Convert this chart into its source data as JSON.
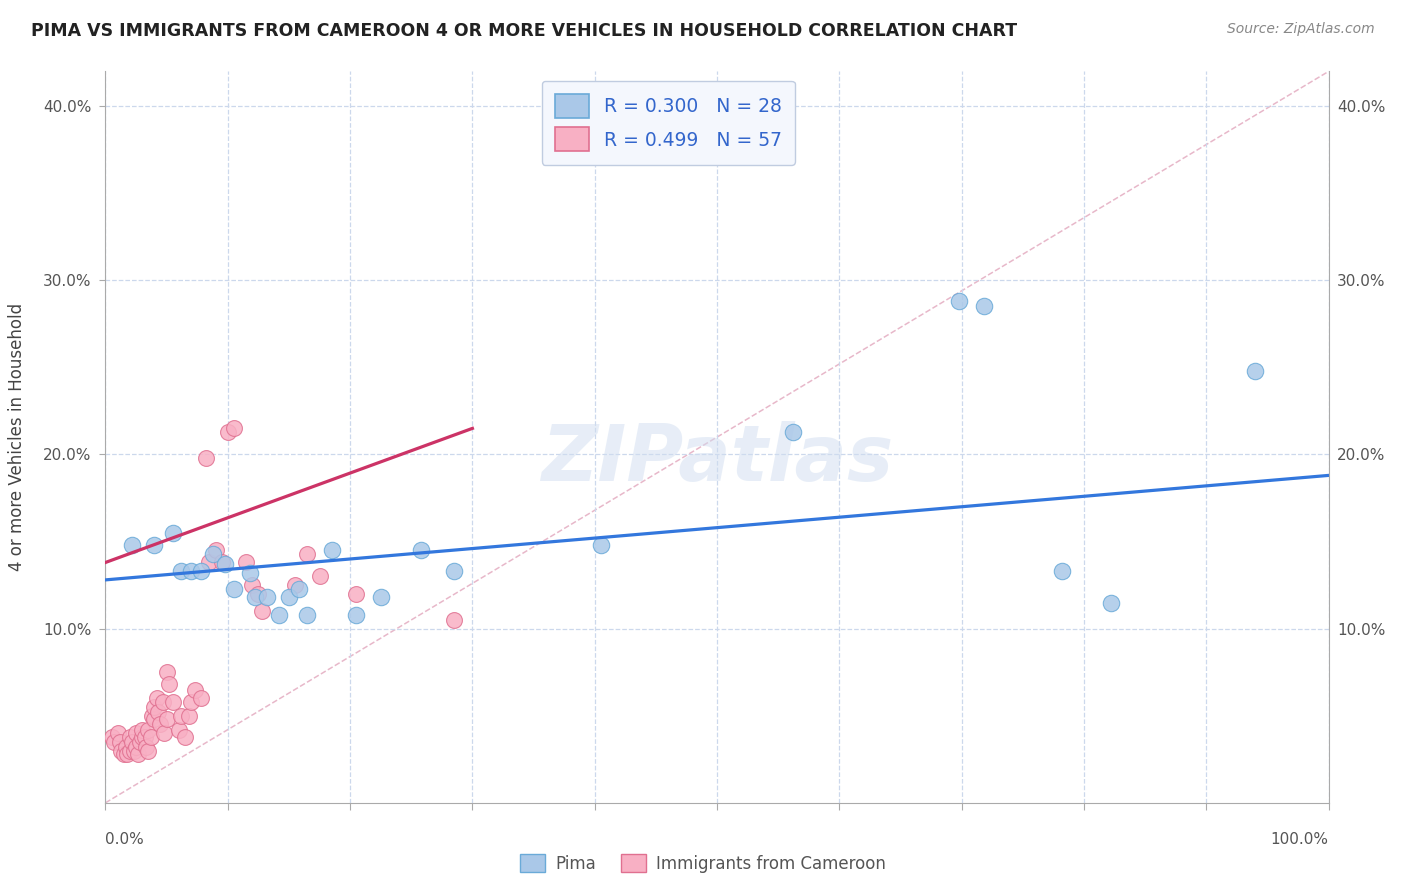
{
  "title": "PIMA VS IMMIGRANTS FROM CAMEROON 4 OR MORE VEHICLES IN HOUSEHOLD CORRELATION CHART",
  "source_text": "Source: ZipAtlas.com",
  "ylabel": "4 or more Vehicles in Household",
  "xlim": [
    0.0,
    1.0
  ],
  "ylim": [
    0.0,
    0.42
  ],
  "xticks": [
    0.0,
    0.1,
    0.2,
    0.3,
    0.4,
    0.5,
    0.6,
    0.7,
    0.8,
    0.9,
    1.0
  ],
  "yticks": [
    0.1,
    0.2,
    0.3,
    0.4
  ],
  "xlabel_labels": [
    "",
    "",
    "",
    "",
    "",
    "",
    "",
    "",
    "",
    "",
    ""
  ],
  "ylabel_labels": [
    "10.0%",
    "20.0%",
    "30.0%",
    "40.0%"
  ],
  "right_ytick_labels": [
    "10.0%",
    "20.0%",
    "30.0%",
    "40.0%"
  ],
  "legend_pima_R": "0.300",
  "legend_pima_N": "28",
  "legend_cam_R": "0.499",
  "legend_cam_N": "57",
  "watermark": "ZIPatlas",
  "pima_color": "#aac8e8",
  "pima_edge_color": "#6aaad8",
  "pima_line_color": "#3377dd",
  "cam_color": "#f8b0c4",
  "cam_edge_color": "#e07090",
  "cam_line_color": "#cc3366",
  "bg_color": "#ffffff",
  "grid_color": "#ccd8ec",
  "pima_scatter": [
    [
      0.022,
      0.148
    ],
    [
      0.04,
      0.148
    ],
    [
      0.055,
      0.155
    ],
    [
      0.062,
      0.133
    ],
    [
      0.07,
      0.133
    ],
    [
      0.078,
      0.133
    ],
    [
      0.088,
      0.143
    ],
    [
      0.098,
      0.137
    ],
    [
      0.105,
      0.123
    ],
    [
      0.118,
      0.132
    ],
    [
      0.122,
      0.118
    ],
    [
      0.132,
      0.118
    ],
    [
      0.142,
      0.108
    ],
    [
      0.15,
      0.118
    ],
    [
      0.158,
      0.123
    ],
    [
      0.165,
      0.108
    ],
    [
      0.185,
      0.145
    ],
    [
      0.205,
      0.108
    ],
    [
      0.225,
      0.118
    ],
    [
      0.258,
      0.145
    ],
    [
      0.285,
      0.133
    ],
    [
      0.405,
      0.148
    ],
    [
      0.562,
      0.213
    ],
    [
      0.698,
      0.288
    ],
    [
      0.718,
      0.285
    ],
    [
      0.782,
      0.133
    ],
    [
      0.822,
      0.115
    ],
    [
      0.94,
      0.248
    ]
  ],
  "cam_scatter": [
    [
      0.005,
      0.038
    ],
    [
      0.007,
      0.035
    ],
    [
      0.01,
      0.04
    ],
    [
      0.012,
      0.035
    ],
    [
      0.013,
      0.03
    ],
    [
      0.015,
      0.028
    ],
    [
      0.017,
      0.032
    ],
    [
      0.018,
      0.028
    ],
    [
      0.02,
      0.03
    ],
    [
      0.02,
      0.038
    ],
    [
      0.022,
      0.035
    ],
    [
      0.023,
      0.03
    ],
    [
      0.025,
      0.04
    ],
    [
      0.025,
      0.032
    ],
    [
      0.027,
      0.028
    ],
    [
      0.028,
      0.035
    ],
    [
      0.03,
      0.038
    ],
    [
      0.03,
      0.042
    ],
    [
      0.032,
      0.038
    ],
    [
      0.033,
      0.032
    ],
    [
      0.035,
      0.03
    ],
    [
      0.035,
      0.042
    ],
    [
      0.037,
      0.038
    ],
    [
      0.038,
      0.05
    ],
    [
      0.04,
      0.048
    ],
    [
      0.04,
      0.055
    ],
    [
      0.042,
      0.06
    ],
    [
      0.043,
      0.052
    ],
    [
      0.045,
      0.045
    ],
    [
      0.047,
      0.058
    ],
    [
      0.048,
      0.04
    ],
    [
      0.05,
      0.048
    ],
    [
      0.05,
      0.075
    ],
    [
      0.052,
      0.068
    ],
    [
      0.055,
      0.058
    ],
    [
      0.06,
      0.042
    ],
    [
      0.062,
      0.05
    ],
    [
      0.065,
      0.038
    ],
    [
      0.068,
      0.05
    ],
    [
      0.07,
      0.058
    ],
    [
      0.073,
      0.065
    ],
    [
      0.078,
      0.06
    ],
    [
      0.082,
      0.198
    ],
    [
      0.085,
      0.138
    ],
    [
      0.09,
      0.145
    ],
    [
      0.095,
      0.138
    ],
    [
      0.1,
      0.213
    ],
    [
      0.105,
      0.215
    ],
    [
      0.115,
      0.138
    ],
    [
      0.12,
      0.125
    ],
    [
      0.125,
      0.12
    ],
    [
      0.128,
      0.11
    ],
    [
      0.155,
      0.125
    ],
    [
      0.165,
      0.143
    ],
    [
      0.175,
      0.13
    ],
    [
      0.205,
      0.12
    ],
    [
      0.285,
      0.105
    ]
  ],
  "pima_line_x": [
    0.0,
    1.0
  ],
  "pima_line_y": [
    0.128,
    0.188
  ],
  "cam_line_x": [
    0.0,
    0.3
  ],
  "cam_line_y": [
    0.138,
    0.215
  ],
  "diag_line_x": [
    0.0,
    1.0
  ],
  "diag_line_y": [
    0.0,
    0.42
  ],
  "bottom_left_label": "0.0%",
  "bottom_right_label": "100.0%",
  "bottom_legend_pima": "Pima",
  "bottom_legend_cam": "Immigrants from Cameroon"
}
